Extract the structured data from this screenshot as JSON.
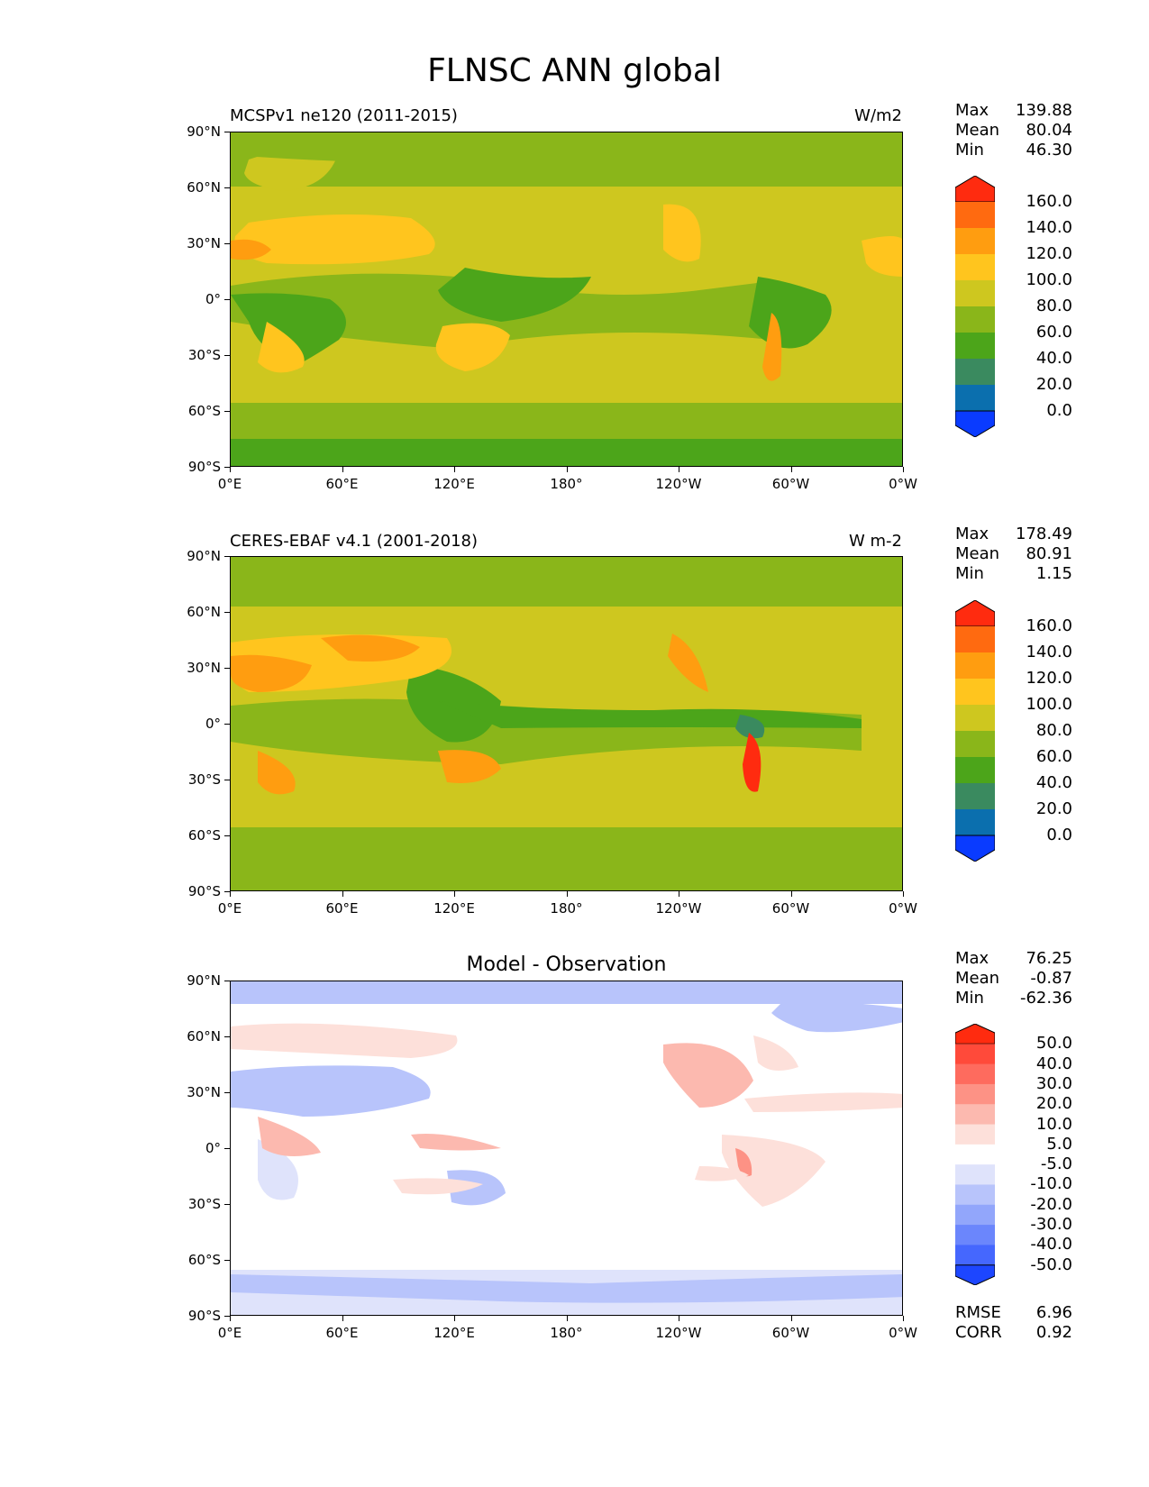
{
  "page_title": "FLNSC ANN global",
  "panels": [
    {
      "left_title": "MCSPv1 ne120 (2011-2015)",
      "right_title": "W/m2",
      "center_title": "",
      "stats": [
        [
          "Max",
          "139.88"
        ],
        [
          "Mean",
          "80.04"
        ],
        [
          "Min",
          "46.30"
        ]
      ],
      "extra_stats": [],
      "colorbar_labels": [
        "160.0",
        "140.0",
        "120.0",
        "100.0",
        "80.0",
        "60.0",
        "40.0",
        "20.0",
        "0.0"
      ],
      "colorbar_colors": [
        "#ff2b0f",
        "#ff6a10",
        "#ff9d10",
        "#ffc51e",
        "#cec71f",
        "#8ab61a",
        "#4ca51a",
        "#3a8a5f",
        "#0b6fae",
        "#0a3bff"
      ]
    },
    {
      "left_title": "CERES-EBAF v4.1 (2001-2018)",
      "right_title": "W m-2",
      "center_title": "",
      "stats": [
        [
          "Max",
          "178.49"
        ],
        [
          "Mean",
          "80.91"
        ],
        [
          "Min",
          "1.15"
        ]
      ],
      "extra_stats": [],
      "colorbar_labels": [
        "160.0",
        "140.0",
        "120.0",
        "100.0",
        "80.0",
        "60.0",
        "40.0",
        "20.0",
        "0.0"
      ],
      "colorbar_colors": [
        "#ff2b0f",
        "#ff6a10",
        "#ff9d10",
        "#ffc51e",
        "#cec71f",
        "#8ab61a",
        "#4ca51a",
        "#3a8a5f",
        "#0b6fae",
        "#0a3bff"
      ]
    },
    {
      "left_title": "",
      "right_title": "",
      "center_title": "Model - Observation",
      "stats": [
        [
          "Max",
          "76.25"
        ],
        [
          "Mean",
          "-0.87"
        ],
        [
          "Min",
          "-62.36"
        ]
      ],
      "extra_stats": [
        [
          "RMSE",
          "6.96"
        ],
        [
          "CORR",
          "0.92"
        ]
      ],
      "colorbar_labels": [
        "50.0",
        "40.0",
        "30.0",
        "20.0",
        "10.0",
        "5.0",
        "-5.0",
        "-10.0",
        "-20.0",
        "-30.0",
        "-40.0",
        "-50.0"
      ],
      "colorbar_colors": [
        "#ff2b0f",
        "#ff4a3a",
        "#fe6b5e",
        "#fd9285",
        "#fcb9af",
        "#fde0da",
        "#ffffff",
        "#dfe3fb",
        "#b8c4fb",
        "#92a6fb",
        "#6b86fc",
        "#4567fe",
        "#1d46ff"
      ]
    }
  ],
  "y_ticks": [
    "90°N",
    "60°N",
    "30°N",
    "0°",
    "30°S",
    "60°S",
    "90°S"
  ],
  "x_ticks": [
    "0°E",
    "60°E",
    "120°E",
    "180°",
    "120°W",
    "60°W",
    "0°W"
  ]
}
